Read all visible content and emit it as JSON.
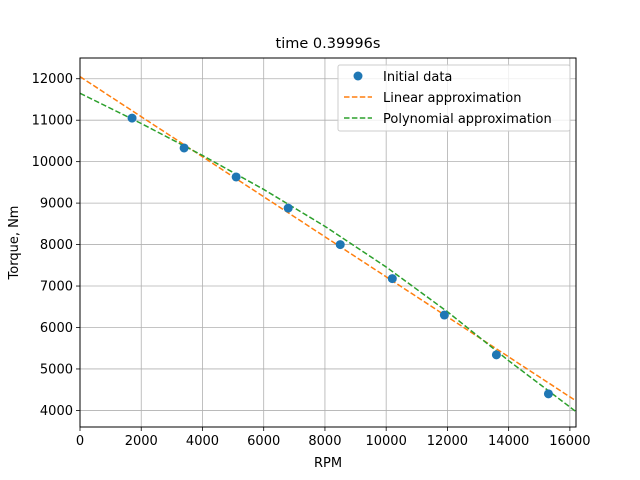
{
  "chart_data": {
    "type": "scatter",
    "title": "time 0.39996s",
    "xlabel": "RPM",
    "ylabel": "Torque, Nm",
    "xlim": [
      0,
      16200
    ],
    "ylim": [
      3600,
      12500
    ],
    "xticks": [
      0,
      2000,
      4000,
      6000,
      8000,
      10000,
      12000,
      14000,
      16000
    ],
    "yticks": [
      4000,
      5000,
      6000,
      7000,
      8000,
      9000,
      10000,
      11000,
      12000
    ],
    "grid": true,
    "legend_position": "top-right",
    "series": [
      {
        "name": "Initial data",
        "kind": "scatter",
        "color": "#1f77b4",
        "x": [
          1700,
          3400,
          5100,
          6800,
          8500,
          10200,
          11900,
          13600,
          15300
        ],
        "y": [
          11050,
          10330,
          9630,
          8880,
          8000,
          7180,
          6300,
          5340,
          4400
        ]
      },
      {
        "name": "Linear approximation",
        "kind": "dashed-line",
        "color": "#ff7f0e",
        "x": [
          0,
          16200
        ],
        "y": [
          12050,
          4230
        ]
      },
      {
        "name": "Polynomial approximation",
        "kind": "dashed-line",
        "color": "#2ca02c",
        "x": [
          0,
          2000,
          4000,
          6000,
          8000,
          10000,
          12000,
          14000,
          16200
        ],
        "y": [
          11650,
          10920,
          10150,
          9330,
          8440,
          7460,
          6380,
          5200,
          3970
        ]
      }
    ]
  }
}
